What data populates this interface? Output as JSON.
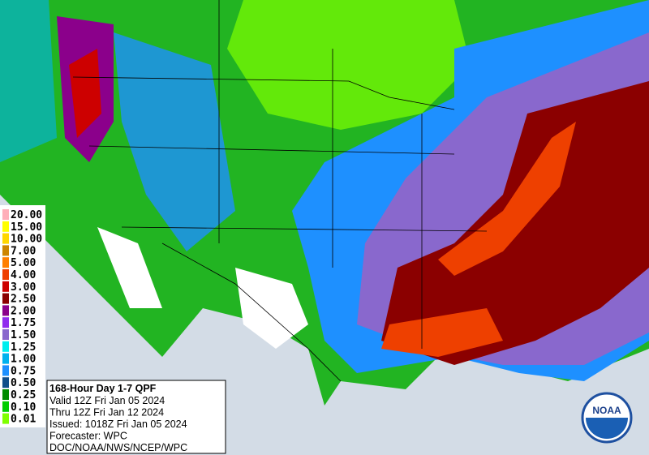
{
  "product": {
    "title": "168-Hour Day 1-7 QPF",
    "lines": [
      "Valid 12Z Fri Jan 05 2024",
      "Thru 12Z Fri Jan 12 2024",
      "Issued: 1018Z Fri Jan 05 2024",
      "Forecaster: WPC",
      "DOC/NOAA/NWS/NCEP/WPC"
    ]
  },
  "logo": {
    "text": "NOAA"
  },
  "legend": {
    "items": [
      {
        "label": "20.00",
        "color": "#ffaeb9"
      },
      {
        "label": "15.00",
        "color": "#ffff00"
      },
      {
        "label": "10.00",
        "color": "#ffd700"
      },
      {
        "label": "7.00",
        "color": "#cd8500"
      },
      {
        "label": "5.00",
        "color": "#ff7f00"
      },
      {
        "label": "4.00",
        "color": "#ee4000"
      },
      {
        "label": "3.00",
        "color": "#cd0000"
      },
      {
        "label": "2.50",
        "color": "#8b0000"
      },
      {
        "label": "2.00",
        "color": "#8b008b"
      },
      {
        "label": "1.75",
        "color": "#912cee"
      },
      {
        "label": "1.50",
        "color": "#8968cd"
      },
      {
        "label": "1.25",
        "color": "#00eeee"
      },
      {
        "label": "1.00",
        "color": "#00b2ee"
      },
      {
        "label": "0.75",
        "color": "#1e90ff"
      },
      {
        "label": "0.50",
        "color": "#104e8b"
      },
      {
        "label": "0.25",
        "color": "#008b00"
      },
      {
        "label": "0.10",
        "color": "#00cd00"
      },
      {
        "label": "0.01",
        "color": "#7fff00"
      }
    ]
  }
}
